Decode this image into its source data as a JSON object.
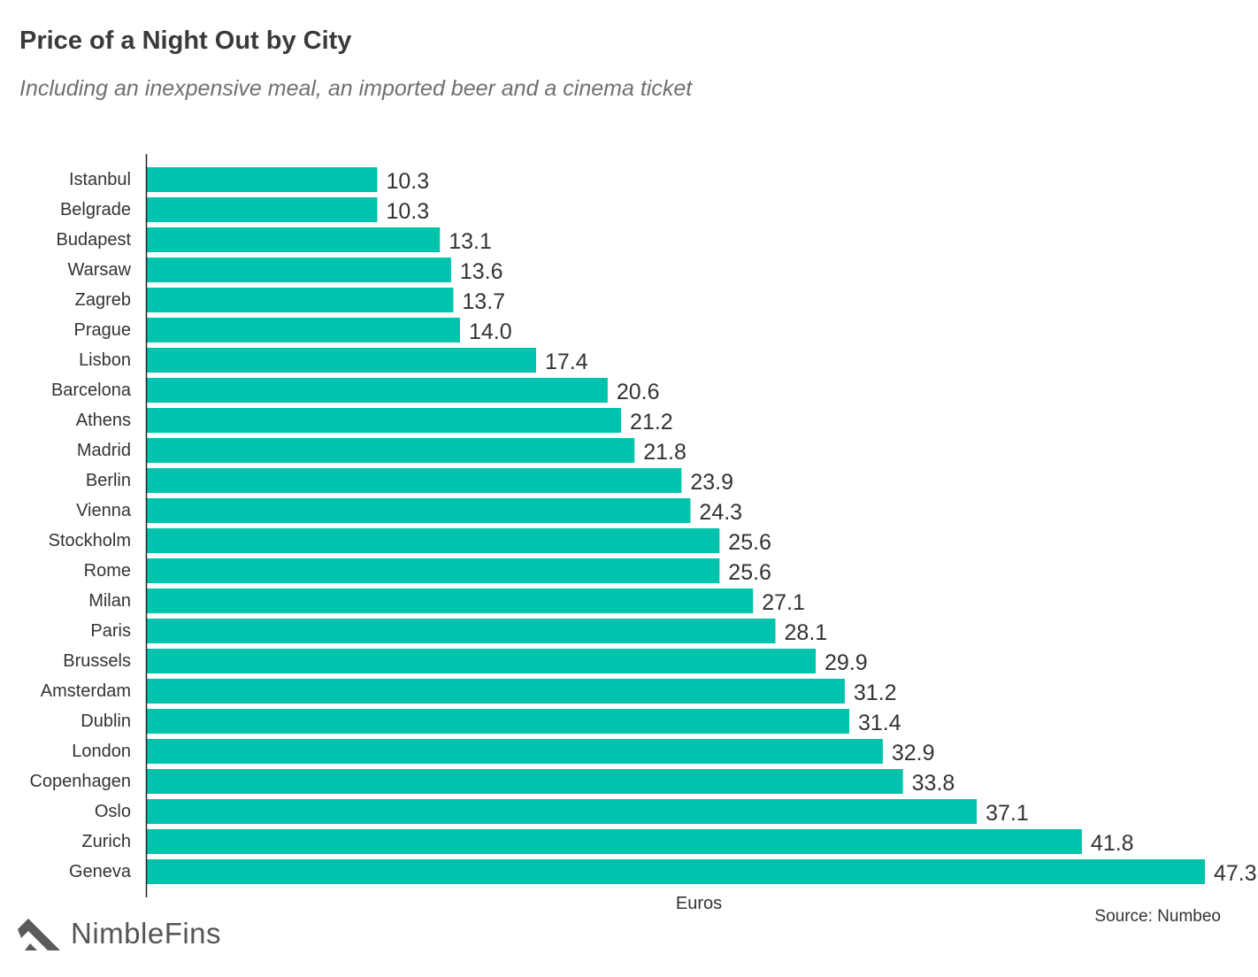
{
  "chart_data": {
    "type": "bar",
    "orientation": "horizontal",
    "title": "Price of a Night Out by City",
    "subtitle": "Including an inexpensive meal, an imported beer and a cinema ticket",
    "xlabel": "Euros",
    "ylabel": "",
    "categories": [
      "Istanbul",
      "Belgrade",
      "Budapest",
      "Warsaw",
      "Zagreb",
      "Prague",
      "Lisbon",
      "Barcelona",
      "Athens",
      "Madrid",
      "Berlin",
      "Vienna",
      "Stockholm",
      "Rome",
      "Milan",
      "Paris",
      "Brussels",
      "Amsterdam",
      "Dublin",
      "London",
      "Copenhagen",
      "Oslo",
      "Zurich",
      "Geneva"
    ],
    "values": [
      10.3,
      10.3,
      13.1,
      13.6,
      13.7,
      14.0,
      17.4,
      20.6,
      21.2,
      21.8,
      23.9,
      24.3,
      25.6,
      25.6,
      27.1,
      28.1,
      29.9,
      31.2,
      31.4,
      32.9,
      33.8,
      37.1,
      41.8,
      47.3
    ],
    "value_labels": [
      "10.3",
      "10.3",
      "13.1",
      "13.6",
      "13.7",
      "14.0",
      "17.4",
      "20.6",
      "21.2",
      "21.8",
      "23.9",
      "24.3",
      "25.6",
      "25.6",
      "27.1",
      "28.1",
      "29.9",
      "31.2",
      "31.4",
      "32.9",
      "33.8",
      "37.1",
      "41.8",
      "47.3"
    ],
    "xlim": [
      0,
      47.3
    ],
    "grid": false,
    "bar_color": "#00c3ad",
    "axis_color": "#222222",
    "source": "Source: Numbeo"
  },
  "brand": {
    "name": "NimbleFins",
    "logo_icon": "nimblefins-chevron-logo",
    "logo_color": "#5a5a5a"
  }
}
